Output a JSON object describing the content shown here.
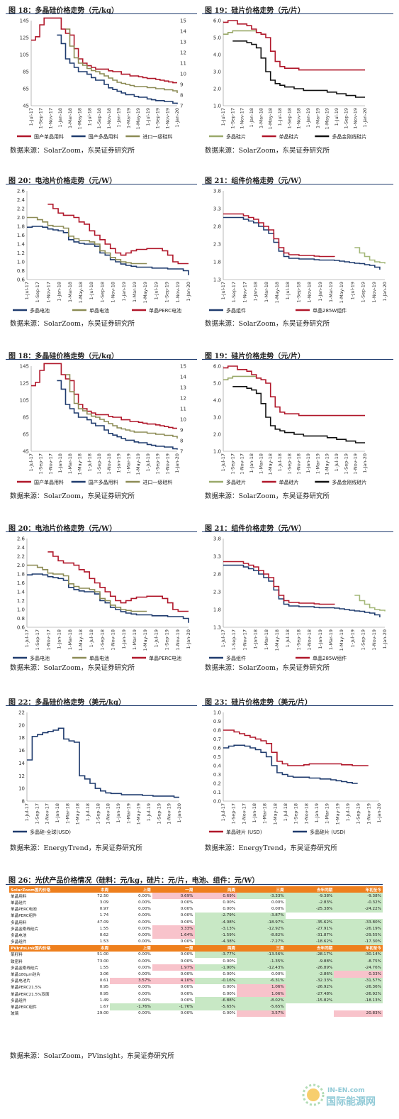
{
  "colors": {
    "navy": "#1f3b6e",
    "red": "#b0172a",
    "olive": "#8c8b55",
    "green": "#9aa96a",
    "black": "#111111",
    "lightgreen": "#a4b778"
  },
  "fig18": {
    "title": "图 18：多晶硅价格走势（元/kg）",
    "legend": [
      "国产单晶用料",
      "国产多晶用料",
      "进口一级硅料"
    ],
    "source": "数据来源：SolarZoom，东吴证券研究所"
  },
  "fig19": {
    "title": "图 19：硅片价格走势（元/片）",
    "legend": [
      "多晶硅片",
      "单晶硅片",
      "多晶金刚线硅片"
    ],
    "source": "数据来源：SolarZoom，东吴证券研究所"
  },
  "fig20": {
    "title": "图 20：电池片价格走势（元/W）",
    "legend": [
      "多晶电池",
      "单晶电池",
      "单晶PERC电池"
    ],
    "source": "数据来源：SolarZoom，东吴证券研究所"
  },
  "fig21": {
    "title": "图 21：组件价格走势（元/W）",
    "legend": [
      "多晶组件",
      "单晶285W组件"
    ],
    "source": "数据来源：SolarZoom，东吴证券研究所"
  },
  "fig22": {
    "title": "图 22：多晶硅价格走势（美元/kg）",
    "legend": [
      "多晶硅-全球(USD)"
    ],
    "source": "数据来源：EnergyTrend，东吴证券研究所"
  },
  "fig23": {
    "title": "图 23：硅片价格走势（美元/片）",
    "legend": [
      "单晶硅片 (USD)",
      "多晶硅片 (USD)"
    ],
    "source": "数据来源：EnergyTrend，东吴证券研究所"
  },
  "fig26": {
    "title": "图 26：光伏产品价格情况（硅料：元/kg，硅片：元/片，电池、组件：元/W）",
    "source": "数据来源：SolarZoom，PVinsight，东吴证券研究所"
  },
  "x_ticks_a": [
    "1-Jul-17",
    "1-Sep-17",
    "1-Nov-17",
    "1-Jan-18",
    "1-Mar-18",
    "1-May-18",
    "1-Jul-18",
    "1-Sep-18",
    "1-Nov-18",
    "1-Jan-19",
    "1-Mar-19",
    "1-May-19",
    "1-Jul-19",
    "1-Sep-19",
    "1-Nov-19",
    "1-Jan-20"
  ],
  "x_ticks_b": [
    "1-Jul-17",
    "1-Sep-17",
    "1-Nov-17",
    "1-Jan-18",
    "1-Mar-18",
    "1-May-18",
    "1-Jul-18",
    "1-Sep-18",
    "1-Nov-18",
    "1-Jan-19",
    "1-Mar-19",
    "1-May-19",
    "1-Jul-19",
    "1-Sep-19",
    "1-Nov-19",
    "1-Jan-20"
  ],
  "chart_data": [
    {
      "id": "fig18",
      "type": "line",
      "ylim": [
        45,
        145
      ],
      "yticks": [
        45,
        65,
        85,
        105,
        125,
        145
      ],
      "y2lim": [
        7,
        15
      ],
      "y2ticks": [
        7,
        8,
        9,
        10,
        11,
        12,
        13,
        14,
        15
      ],
      "series": [
        {
          "name": "国产单晶用料",
          "color": "#b0172a",
          "axis": "left",
          "values": [
            122,
            126,
            140,
            148,
            148,
            148,
            148,
            135,
            130,
            128,
            112,
            100,
            95,
            92,
            90,
            88,
            88,
            88,
            86,
            85,
            85,
            82,
            82,
            80,
            80,
            79,
            78,
            77,
            77,
            76,
            75,
            74,
            73,
            72,
            72
          ]
        },
        {
          "name": "国产多晶用料",
          "color": "#1f3b6e",
          "axis": "left",
          "start": 6,
          "values": [
            128,
            118,
            100,
            95,
            90,
            85,
            85,
            82,
            78,
            75,
            75,
            70,
            66,
            64,
            62,
            60,
            58,
            58,
            56,
            55,
            55,
            53,
            52,
            51,
            51,
            50,
            50,
            48,
            47
          ]
        },
        {
          "name": "进口一级硅料",
          "color": "#8c8b55",
          "axis": "right",
          "start": 8,
          "values": [
            14.2,
            12.6,
            11.5,
            11.0,
            10.8,
            10.5,
            10.3,
            10.2,
            10.0,
            9.8,
            9.6,
            9.4,
            9.2,
            9.1,
            9.0,
            8.9,
            8.8,
            8.8,
            8.8,
            8.7,
            8.7,
            8.6,
            8.6,
            8.5,
            8.5,
            8.4,
            8.2
          ]
        }
      ]
    },
    {
      "id": "fig19",
      "type": "line",
      "ylim": [
        1.0,
        6.0
      ],
      "yticks": [
        1.0,
        2.0,
        3.0,
        4.0,
        5.0,
        6.0
      ],
      "series": [
        {
          "name": "多晶硅片",
          "color": "#9aa96a",
          "values": [
            5.2,
            5.3,
            5.4,
            5.4,
            5.4,
            5.4,
            5.4,
            5.3,
            5.2
          ]
        },
        {
          "name": "单晶硅片",
          "color": "#b0172a",
          "values": [
            5.9,
            6.0,
            6.0,
            5.8,
            5.8,
            5.7,
            5.5,
            5.3,
            5.2,
            5.0,
            4.2,
            3.6,
            3.3,
            3.2,
            3.2,
            3.2,
            3.1,
            3.1,
            3.1,
            3.1,
            3.1,
            3.1,
            3.1,
            3.1,
            3.1,
            3.1,
            3.1,
            3.1,
            3.1,
            3.1,
            3.1
          ]
        },
        {
          "name": "多晶金刚线硅片",
          "color": "#111111",
          "start": 2,
          "values": [
            4.8,
            4.8,
            4.8,
            4.7,
            4.6,
            4.4,
            3.8,
            3.0,
            2.5,
            2.3,
            2.2,
            2.1,
            2.1,
            2.0,
            2.0,
            1.9,
            1.9,
            1.9,
            1.9,
            1.9,
            1.8,
            1.8,
            1.7,
            1.7,
            1.6,
            1.6,
            1.5,
            1.5,
            1.5
          ]
        }
      ]
    },
    {
      "id": "fig20",
      "type": "line",
      "ylim": [
        0.6,
        2.6
      ],
      "yticks": [
        0.6,
        0.8,
        1.0,
        1.2,
        1.4,
        1.6,
        1.8,
        2.0,
        2.2,
        2.4,
        2.6
      ],
      "series": [
        {
          "name": "多晶电池",
          "color": "#1f3b6e",
          "values": [
            1.78,
            1.8,
            1.8,
            1.78,
            1.74,
            1.72,
            1.7,
            1.66,
            1.5,
            1.45,
            1.42,
            1.4,
            1.4,
            1.35,
            1.2,
            1.15,
            1.05,
            1.0,
            0.95,
            0.92,
            0.9,
            0.88,
            0.88,
            0.88,
            0.86,
            0.86,
            0.86,
            0.84,
            0.84,
            0.84,
            0.8,
            0.7
          ]
        },
        {
          "name": "单晶电池",
          "color": "#8c8b55",
          "values": [
            2.0,
            2.0,
            1.95,
            1.9,
            1.82,
            1.8,
            1.8,
            1.76,
            1.58,
            1.52,
            1.48,
            1.48,
            1.45,
            1.4,
            1.25,
            1.2,
            1.1,
            1.05,
            1.0,
            0.98,
            0.96,
            0.96,
            0.96,
            0.96
          ]
        },
        {
          "name": "单晶PERC电池",
          "color": "#b0172a",
          "start": 4,
          "values": [
            2.3,
            2.2,
            2.1,
            2.05,
            2.05,
            2.0,
            1.9,
            1.85,
            1.7,
            1.6,
            1.5,
            1.4,
            1.3,
            1.2,
            1.15,
            1.2,
            1.25,
            1.28,
            1.28,
            1.3,
            1.3,
            1.3,
            1.25,
            1.15,
            1.0,
            0.96,
            0.96,
            0.96
          ]
        }
      ]
    },
    {
      "id": "fig21",
      "type": "line",
      "ylim": [
        1.3,
        3.8
      ],
      "yticks": [
        1.3,
        1.8,
        2.3,
        2.8,
        3.3,
        3.8
      ],
      "series": [
        {
          "name": "多晶组件",
          "color": "#1f3b6e",
          "values": [
            3.05,
            3.05,
            3.05,
            3.05,
            3.0,
            2.95,
            2.9,
            2.8,
            2.7,
            2.6,
            2.35,
            2.1,
            1.95,
            1.9,
            1.9,
            1.88,
            1.88,
            1.88,
            1.86,
            1.85,
            1.85,
            1.85,
            1.84,
            1.82,
            1.8,
            1.78,
            1.76,
            1.75,
            1.72,
            1.7,
            1.65,
            1.58
          ]
        },
        {
          "name": "单晶285W组件",
          "color": "#b0172a",
          "values": [
            3.15,
            3.15,
            3.15,
            3.15,
            3.1,
            3.05,
            3.0,
            2.9,
            2.8,
            2.7,
            2.45,
            2.2,
            2.05,
            2.0,
            2.0,
            1.98,
            1.98,
            1.98,
            1.96,
            1.95,
            1.95,
            1.95,
            1.94
          ]
        },
        {
          "name": "",
          "color": "#a4b778",
          "start": 26,
          "values": [
            2.2,
            2.05,
            1.95,
            1.85,
            1.8,
            1.78,
            1.75
          ]
        }
      ]
    },
    {
      "id": "fig22",
      "type": "line",
      "ylim": [
        8,
        22
      ],
      "yticks": [
        8,
        10,
        12,
        14,
        16,
        18,
        20,
        22
      ],
      "series": [
        {
          "name": "多晶硅-全球(USD)",
          "color": "#1f3b6e",
          "values": [
            14.5,
            18.2,
            18.5,
            18.8,
            19.0,
            19.2,
            19.5,
            17.8,
            17.5,
            17.3,
            12.0,
            11.5,
            10.8,
            10.0,
            9.6,
            9.3,
            9.2,
            9.2,
            9.0,
            9.0,
            9.0,
            9.0,
            8.9,
            8.9,
            8.8,
            8.8,
            8.8,
            8.8,
            8.6,
            8.6
          ]
        }
      ]
    },
    {
      "id": "fig23",
      "type": "line",
      "ylim": [
        0.0,
        1.0
      ],
      "yticks": [
        0.0,
        0.1,
        0.2,
        0.3,
        0.4,
        0.5,
        0.6,
        0.7,
        0.8,
        0.9,
        1.0
      ],
      "series": [
        {
          "name": "单晶硅片 (USD)",
          "color": "#b0172a",
          "values": [
            0.8,
            0.8,
            0.78,
            0.76,
            0.74,
            0.72,
            0.7,
            0.68,
            0.65,
            0.55,
            0.45,
            0.42,
            0.4,
            0.4,
            0.4,
            0.41,
            0.42,
            0.42,
            0.42,
            0.42,
            0.42,
            0.42,
            0.41,
            0.41,
            0.4,
            0.4,
            0.4,
            0.4
          ]
        },
        {
          "name": "多晶硅片 (USD)",
          "color": "#1f3b6e",
          "values": [
            0.6,
            0.62,
            0.63,
            0.63,
            0.62,
            0.6,
            0.58,
            0.55,
            0.5,
            0.4,
            0.32,
            0.3,
            0.28,
            0.27,
            0.27,
            0.27,
            0.26,
            0.26,
            0.25,
            0.25,
            0.24,
            0.23,
            0.22,
            0.21,
            0.2,
            0.2
          ]
        }
      ]
    },
    {
      "id": "fig26",
      "type": "table",
      "header1": [
        "SolarZoom国内价格",
        "本周",
        "上周",
        "一周",
        "两周",
        "三周",
        "去年同期",
        "年初至今"
      ],
      "rows1": [
        [
          "单晶用料",
          "72.50",
          "0.00%",
          "0.69%",
          "0.69%",
          "-3.33%",
          "-9.38%",
          "-9.38%"
        ],
        [
          "单晶硅片",
          "3.09",
          "0.00%",
          "0.00%",
          "0.00%",
          "0.00%",
          "-2.83%",
          "-0.32%"
        ],
        [
          "单晶PERC电池",
          "0.97",
          "0.00%",
          "0.00%",
          "0.00%",
          "0.00%",
          "-25.38%",
          "-24.22%"
        ],
        [
          "单晶PERC组件",
          "1.74",
          "0.00%",
          "0.00%",
          "-2.79%",
          "-3.87%",
          "",
          ""
        ],
        [
          "多晶用料",
          "47.09",
          "0.00%",
          "0.00%",
          "-4.08%",
          "-18.97%",
          "-35.62%",
          "-33.80%"
        ],
        [
          "多晶金刚线硅片",
          "1.55",
          "0.00%",
          "3.33%",
          "-3.13%",
          "-12.92%",
          "-27.91%",
          "-26.19%"
        ],
        [
          "多晶电池",
          "0.62",
          "0.00%",
          "1.64%",
          "-1.59%",
          "-8.82%",
          "-31.87%",
          "-29.55%"
        ],
        [
          "多晶组件",
          "1.53",
          "0.00%",
          "0.00%",
          "-4.38%",
          "-7.27%",
          "-18.62%",
          "-17.30%"
        ]
      ],
      "header2": [
        "PVInfoLink国内价格",
        "本周",
        "上周",
        "一周",
        "两周",
        "三周",
        "去年同期",
        "年初至今"
      ],
      "rows2": [
        [
          "菜籽料",
          "51.00",
          "0.00%",
          "0.00%",
          "-3.77%",
          "-13.56%",
          "-28.17%",
          "-30.14%"
        ],
        [
          "致密料",
          "73.00",
          "0.00%",
          "0.00%",
          "0.00%",
          "-1.35%",
          "-9.88%",
          "-8.75%"
        ],
        [
          "多晶金刚线硅片",
          "1.55",
          "0.00%",
          "1.97%",
          "-1.90%",
          "-12.43%",
          "-26.89%",
          "-24.76%"
        ],
        [
          "单晶180μm硅片",
          "3.06",
          "0.00%",
          "0.00%",
          "0.00%",
          "0.00%",
          "-2.86%",
          "0.33%"
        ],
        [
          "多晶电池片",
          "0.61",
          "3.57%",
          "4.10%",
          "-0.16%",
          "-6.31%",
          "-32.33%",
          "-31.57%"
        ],
        [
          "单晶PERC21.5%",
          "0.95",
          "0.00%",
          "0.00%",
          "0.00%",
          "1.06%",
          "-26.92%",
          "-26.36%"
        ],
        [
          "单晶PERC21.5%双面",
          "0.95",
          "0.00%",
          "0.00%",
          "0.00%",
          "1.06%",
          "-27.48%",
          "-26.92%"
        ],
        [
          "多晶组件",
          "1.49",
          "0.00%",
          "0.00%",
          "-6.88%",
          "-8.02%",
          "-15.82%",
          "-18.13%"
        ],
        [
          "单晶PERC组件",
          "1.67",
          "-1.76%",
          "-1.76%",
          "-5.65%",
          "-5.65%",
          "",
          ""
        ],
        [
          "玻璃",
          "29.00",
          "0.00%",
          "0.00%",
          "0.00%",
          "3.57%",
          "",
          "20.83%"
        ]
      ]
    }
  ],
  "watermark": "IN-EN.com 国际能源网"
}
